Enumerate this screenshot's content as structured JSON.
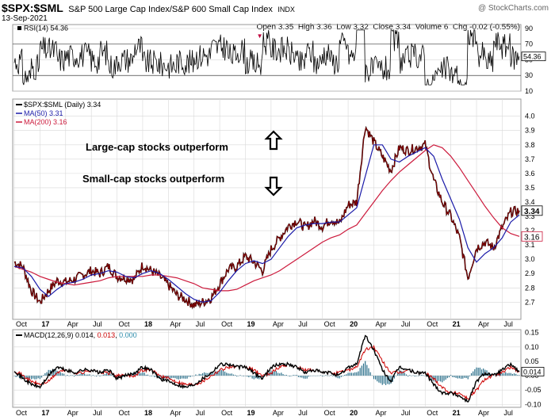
{
  "header": {
    "symbol": "$SPX:$SML",
    "description": "S&P 500 Large Cap Index/S&P 600 Small Cap Index",
    "exchange": "INDX",
    "watermark": "@ StockCharts.com",
    "date": "13-Sep-2021",
    "quote": "Open 3.35  High 3.36  Low 3.32  Close 3.34  Volume 6  Chg -0.02 (-0.55%)",
    "chg_arrow": "▼"
  },
  "colors": {
    "price": "#8b0000",
    "ma50": "#1a1aa8",
    "ma200": "#cc1a3c",
    "macd_line": "#000000",
    "macd_signal": "#cc0000",
    "macd_hist": "#2a6f8a",
    "rsi": "#000000",
    "grid": "#d8d8d8"
  },
  "chart_data": [
    {
      "type": "line",
      "panel": "rsi",
      "legend": "RSI(14) 54.36",
      "last_value_label": "54.36",
      "ylim": [
        10,
        95
      ],
      "ticks": [
        10,
        30,
        50,
        70,
        90
      ],
      "reference_lines": [
        30,
        70
      ],
      "series": [
        {
          "name": "RSI(14)",
          "value": 54.36
        }
      ]
    },
    {
      "type": "line",
      "panel": "price",
      "legend": [
        {
          "key": "price",
          "text": "$SPX:$SML (Daily) 3.34"
        },
        {
          "key": "ma50",
          "text": "MA(50) 3.31"
        },
        {
          "key": "ma200",
          "text": "MA(200) 3.16"
        }
      ],
      "ylim": [
        2.58,
        4.12
      ],
      "yticks": [
        2.7,
        2.8,
        2.9,
        3.0,
        3.1,
        3.2,
        3.3,
        3.4,
        3.5,
        3.6,
        3.7,
        3.8,
        3.9,
        4.0
      ],
      "last_labels": {
        "price": "3.34",
        "ma200": "3.16"
      },
      "annotations": [
        "Large-cap stocks outperform",
        "Small-cap stocks outperform"
      ],
      "x": [
        "2016-10",
        "2016-11",
        "2016-12",
        "2017-01",
        "2017-02",
        "2017-03",
        "2017-04",
        "2017-05",
        "2017-06",
        "2017-07",
        "2017-08",
        "2017-09",
        "2017-10",
        "2017-11",
        "2017-12",
        "2018-01",
        "2018-02",
        "2018-03",
        "2018-04",
        "2018-05",
        "2018-06",
        "2018-07",
        "2018-08",
        "2018-09",
        "2018-10",
        "2018-11",
        "2018-12",
        "2019-01",
        "2019-02",
        "2019-03",
        "2019-04",
        "2019-05",
        "2019-06",
        "2019-07",
        "2019-08",
        "2019-09",
        "2019-10",
        "2019-11",
        "2019-12",
        "2020-01",
        "2020-02",
        "2020-03",
        "2020-04",
        "2020-05",
        "2020-06",
        "2020-07",
        "2020-08",
        "2020-09",
        "2020-10",
        "2020-11",
        "2020-12",
        "2021-01",
        "2021-02",
        "2021-03",
        "2021-04",
        "2021-05",
        "2021-06",
        "2021-07",
        "2021-08",
        "2021-09"
      ],
      "series": [
        {
          "name": "$SPX:$SML (Daily)",
          "values": [
            2.98,
            2.95,
            2.78,
            2.7,
            2.78,
            2.85,
            2.84,
            2.86,
            2.89,
            2.92,
            2.9,
            2.95,
            2.88,
            2.87,
            2.86,
            2.96,
            2.92,
            2.88,
            2.82,
            2.75,
            2.72,
            2.68,
            2.7,
            2.73,
            2.83,
            2.93,
            2.95,
            3.02,
            2.98,
            2.92,
            3.07,
            3.15,
            3.23,
            3.27,
            3.22,
            3.27,
            3.23,
            3.28,
            3.25,
            3.38,
            3.4,
            3.93,
            3.82,
            3.72,
            3.62,
            3.78,
            3.76,
            3.78,
            3.8,
            3.55,
            3.4,
            3.3,
            3.15,
            2.87,
            3.08,
            3.12,
            3.08,
            3.22,
            3.33,
            3.34
          ]
        },
        {
          "name": "MA(50)",
          "values": [
            2.95,
            2.94,
            2.88,
            2.79,
            2.74,
            2.79,
            2.83,
            2.84,
            2.86,
            2.89,
            2.9,
            2.92,
            2.91,
            2.88,
            2.87,
            2.9,
            2.92,
            2.9,
            2.86,
            2.81,
            2.76,
            2.72,
            2.7,
            2.71,
            2.77,
            2.85,
            2.92,
            2.97,
            2.99,
            2.97,
            3.0,
            3.08,
            3.16,
            3.22,
            3.24,
            3.25,
            3.25,
            3.26,
            3.26,
            3.31,
            3.36,
            3.58,
            3.8,
            3.8,
            3.7,
            3.68,
            3.72,
            3.75,
            3.78,
            3.72,
            3.56,
            3.42,
            3.28,
            3.08,
            2.98,
            3.04,
            3.08,
            3.15,
            3.26,
            3.31
          ]
        },
        {
          "name": "MA(200)",
          "values": [
            2.95,
            2.93,
            2.91,
            2.88,
            2.86,
            2.84,
            2.83,
            2.82,
            2.83,
            2.84,
            2.85,
            2.87,
            2.88,
            2.88,
            2.88,
            2.88,
            2.89,
            2.89,
            2.88,
            2.87,
            2.85,
            2.83,
            2.8,
            2.79,
            2.78,
            2.78,
            2.79,
            2.82,
            2.85,
            2.87,
            2.89,
            2.92,
            2.96,
            3.0,
            3.04,
            3.08,
            3.12,
            3.15,
            3.17,
            3.21,
            3.24,
            3.32,
            3.4,
            3.48,
            3.55,
            3.61,
            3.66,
            3.71,
            3.76,
            3.8,
            3.78,
            3.72,
            3.64,
            3.55,
            3.46,
            3.37,
            3.29,
            3.22,
            3.18,
            3.16
          ]
        }
      ]
    },
    {
      "type": "line",
      "panel": "macd",
      "legend": {
        "prefix": "MACD(12,26,9)",
        "macd": "0.014",
        "signal": "0.013",
        "hist": "0.000"
      },
      "last_value_label": "0.014",
      "ylim": [
        -0.11,
        0.16
      ],
      "yticks": [
        -0.1,
        -0.05,
        0.0,
        0.05,
        0.1,
        0.15
      ],
      "ytick_labels": [
        "-0.10",
        "-0.05",
        "0.00",
        "0.05",
        "0.10",
        "0.15"
      ],
      "series": [
        {
          "name": "MACD",
          "values": [
            0.02,
            -0.01,
            -0.03,
            -0.04,
            0.0,
            0.03,
            0.02,
            0.01,
            0.02,
            0.02,
            0.01,
            0.02,
            -0.01,
            0.0,
            0.01,
            0.03,
            0.02,
            -0.01,
            -0.02,
            -0.03,
            -0.04,
            -0.03,
            -0.01,
            0.01,
            0.04,
            0.04,
            0.03,
            0.03,
            0.01,
            -0.01,
            0.03,
            0.04,
            0.04,
            0.03,
            0.01,
            0.02,
            0.01,
            0.01,
            0.0,
            0.03,
            0.04,
            0.14,
            0.09,
            0.02,
            -0.02,
            0.03,
            0.02,
            0.01,
            0.01,
            -0.03,
            -0.06,
            -0.06,
            -0.07,
            -0.09,
            -0.02,
            0.01,
            0.0,
            0.02,
            0.04,
            0.014
          ]
        },
        {
          "name": "Signal",
          "values": [
            0.02,
            0.0,
            -0.02,
            -0.03,
            -0.02,
            0.01,
            0.02,
            0.01,
            0.01,
            0.02,
            0.01,
            0.01,
            0.0,
            0.0,
            0.0,
            0.02,
            0.02,
            0.0,
            -0.01,
            -0.02,
            -0.03,
            -0.03,
            -0.02,
            0.0,
            0.02,
            0.03,
            0.03,
            0.03,
            0.02,
            0.0,
            0.01,
            0.03,
            0.04,
            0.03,
            0.02,
            0.02,
            0.01,
            0.01,
            0.01,
            0.02,
            0.03,
            0.09,
            0.1,
            0.05,
            0.01,
            0.01,
            0.02,
            0.01,
            0.01,
            -0.01,
            -0.04,
            -0.06,
            -0.06,
            -0.08,
            -0.05,
            -0.01,
            0.0,
            0.01,
            0.03,
            0.013
          ]
        },
        {
          "name": "Histogram",
          "values": [
            0.0,
            -0.01,
            -0.01,
            -0.01,
            0.02,
            0.02,
            0.0,
            0.0,
            0.01,
            0.0,
            0.0,
            0.01,
            -0.01,
            0.0,
            0.01,
            0.01,
            0.0,
            -0.01,
            -0.01,
            -0.01,
            -0.01,
            0.0,
            0.01,
            0.01,
            0.02,
            0.01,
            0.0,
            0.0,
            -0.01,
            -0.01,
            0.02,
            0.01,
            0.0,
            0.0,
            -0.01,
            0.0,
            0.0,
            0.0,
            -0.01,
            0.01,
            0.01,
            0.05,
            -0.01,
            -0.03,
            -0.03,
            0.02,
            0.0,
            0.0,
            0.0,
            -0.02,
            -0.02,
            0.0,
            -0.01,
            -0.01,
            0.03,
            0.02,
            0.0,
            0.01,
            0.01,
            0.0
          ]
        }
      ]
    }
  ],
  "x_axis": {
    "labels": [
      "Oct",
      "17",
      "Apr",
      "Jul",
      "Oct",
      "18",
      "Apr",
      "Jul",
      "Oct",
      "19",
      "Apr",
      "Jul",
      "Oct",
      "20",
      "Apr",
      "Jul",
      "Oct",
      "21",
      "Apr",
      "Jul"
    ],
    "label_months": [
      0,
      3,
      6,
      9,
      12,
      15,
      18,
      21,
      24,
      27,
      30,
      33,
      36,
      39,
      42,
      45,
      48,
      51,
      54,
      57
    ],
    "bold": [
      "17",
      "18",
      "19",
      "20",
      "21"
    ]
  }
}
